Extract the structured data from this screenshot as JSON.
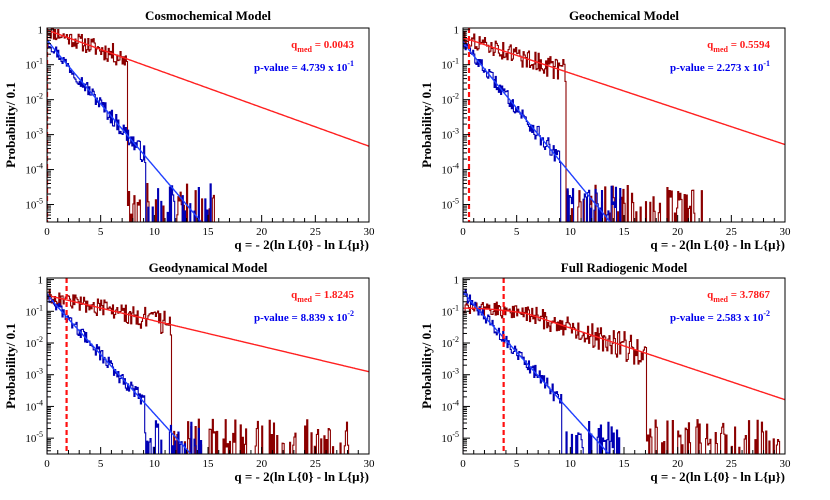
{
  "figure_title": "",
  "colors": {
    "signal_hist": "#8b0000",
    "signal_fit": "#ff2020",
    "background_hist": "#0000b4",
    "background_fit": "#2040ff",
    "marker": "#ff1010",
    "qmed_text": "#ff1a1a",
    "pvalue_text": "#0000ee"
  },
  "chart_data": [
    {
      "type": "histogram",
      "title": "Cosmochemical Model",
      "xlabel": "q = - 2(ln L{0} - ln L{μ})",
      "ylabel": "Probability/ 0.1",
      "xlim": [
        0,
        30
      ],
      "ylim_log10": [
        -5.5,
        0.05
      ],
      "xticks": [
        "0",
        "5",
        "10",
        "15",
        "20",
        "25",
        "30"
      ],
      "yticks": [
        {
          "base": "1",
          "exp": ""
        },
        {
          "base": "10",
          "exp": "-1"
        },
        {
          "base": "10",
          "exp": "-2"
        },
        {
          "base": "10",
          "exp": "-3"
        },
        {
          "base": "10",
          "exp": "-4"
        },
        {
          "base": "10",
          "exp": "-5"
        }
      ],
      "q_med": 0.0043,
      "q_med_prefix": "q",
      "q_med_sub": "med",
      "q_med_text": " = 0.0043",
      "p_value_text": "p-value = 4.739 x 10",
      "p_value_exp": "-1",
      "signal_fit": {
        "a": 0.98,
        "b": 0.255,
        "c": 0.0
      },
      "signal_tail_end": 15.6,
      "background_fit": {
        "a": 0.48,
        "b": 0.83,
        "c": 0.0
      },
      "background_tail_end": 15.3
    },
    {
      "type": "histogram",
      "title": "Geochemical Model",
      "xlabel": "q = - 2(ln L{0} - ln L{μ})",
      "ylabel": "Probability/ 0.1",
      "xlim": [
        0,
        30
      ],
      "ylim_log10": [
        -5.5,
        0.05
      ],
      "xticks": [
        "0",
        "5",
        "10",
        "15",
        "20",
        "25",
        "30"
      ],
      "yticks": [
        {
          "base": "1",
          "exp": ""
        },
        {
          "base": "10",
          "exp": "-1"
        },
        {
          "base": "10",
          "exp": "-2"
        },
        {
          "base": "10",
          "exp": "-3"
        },
        {
          "base": "10",
          "exp": "-4"
        },
        {
          "base": "10",
          "exp": "-5"
        }
      ],
      "q_med": 0.5594,
      "q_med_prefix": "q",
      "q_med_sub": "med",
      "q_med_text": " = 0.5594",
      "p_value_text": "p-value = 2.273 x 10",
      "p_value_exp": "-1",
      "signal_fit": {
        "a": 0.6,
        "b": 0.235,
        "c": 0.0
      },
      "signal_tail_end": 23.0,
      "background_fit": {
        "a": 0.42,
        "b": 0.86,
        "c": 0.0
      },
      "background_tail_end": 15.0
    },
    {
      "type": "histogram",
      "title": "Geodynamical Model",
      "xlabel": "q = - 2(ln L{0} - ln L{μ})",
      "ylabel": "Probability/ 0.1",
      "xlim": [
        0,
        30
      ],
      "ylim_log10": [
        -5.5,
        0.05
      ],
      "xticks": [
        "0",
        "5",
        "10",
        "15",
        "20",
        "25",
        "30"
      ],
      "yticks": [
        {
          "base": "1",
          "exp": ""
        },
        {
          "base": "10",
          "exp": "-1"
        },
        {
          "base": "10",
          "exp": "-2"
        },
        {
          "base": "10",
          "exp": "-3"
        },
        {
          "base": "10",
          "exp": "-4"
        },
        {
          "base": "10",
          "exp": "-5"
        }
      ],
      "q_med": 1.8245,
      "q_med_prefix": "q",
      "q_med_sub": "med",
      "q_med_text": " = 1.8245",
      "p_value_text": "p-value = 8.839 x 10",
      "p_value_exp": "-2",
      "signal_fit": {
        "a": 0.32,
        "b": 0.185,
        "c": 0.0
      },
      "signal_tail_end": 28.3,
      "background_fit": {
        "a": 0.32,
        "b": 0.86,
        "c": 0.0
      },
      "background_tail_end": 14.6
    },
    {
      "type": "histogram",
      "title": "Full Radiogenic Model",
      "xlabel": "q = - 2(ln L{0} - ln L{μ})",
      "ylabel": "Probability/ 0.1",
      "xlim": [
        0,
        30
      ],
      "ylim_log10": [
        -5.5,
        0.05
      ],
      "xticks": [
        "0",
        "5",
        "10",
        "15",
        "20",
        "25",
        "30"
      ],
      "yticks": [
        {
          "base": "1",
          "exp": ""
        },
        {
          "base": "10",
          "exp": "-1"
        },
        {
          "base": "10",
          "exp": "-2"
        },
        {
          "base": "10",
          "exp": "-3"
        },
        {
          "base": "10",
          "exp": "-4"
        },
        {
          "base": "10",
          "exp": "-5"
        }
      ],
      "q_med": 3.7867,
      "q_med_prefix": "q",
      "q_med_sub": "med",
      "q_med_text": " = 3.7867",
      "p_value_text": "p-value = 2.583 x 10",
      "p_value_exp": "-2",
      "signal_fit": {
        "a": 0.14,
        "b": 0.04,
        "c": 0.0115
      },
      "signal_tail_end": 30.0,
      "background_fit": {
        "a": 0.38,
        "b": 0.86,
        "c": 0.0
      },
      "background_tail_end": 14.6
    }
  ]
}
